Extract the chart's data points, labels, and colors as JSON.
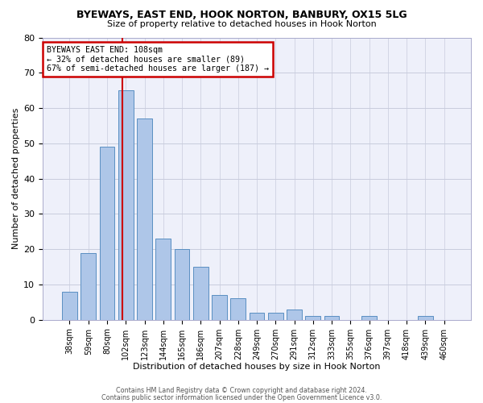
{
  "title1": "BYEWAYS, EAST END, HOOK NORTON, BANBURY, OX15 5LG",
  "title2": "Size of property relative to detached houses in Hook Norton",
  "xlabel": "Distribution of detached houses by size in Hook Norton",
  "ylabel": "Number of detached properties",
  "bar_labels": [
    "38sqm",
    "59sqm",
    "80sqm",
    "102sqm",
    "123sqm",
    "144sqm",
    "165sqm",
    "186sqm",
    "207sqm",
    "228sqm",
    "249sqm",
    "270sqm",
    "291sqm",
    "312sqm",
    "333sqm",
    "355sqm",
    "376sqm",
    "397sqm",
    "418sqm",
    "439sqm",
    "460sqm"
  ],
  "bar_values": [
    8,
    19,
    49,
    65,
    57,
    23,
    20,
    15,
    7,
    6,
    2,
    2,
    3,
    1,
    1,
    0,
    1,
    0,
    0,
    1,
    0
  ],
  "bar_color": "#aec6e8",
  "bar_edge_color": "#5a8fc2",
  "annotation_title": "BYEWAYS EAST END: 108sqm",
  "annotation_line1": "← 32% of detached houses are smaller (89)",
  "annotation_line2": "67% of semi-detached houses are larger (187) →",
  "annotation_box_color": "#ffffff",
  "annotation_box_edge": "#cc0000",
  "footnote1": "Contains HM Land Registry data © Crown copyright and database right 2024.",
  "footnote2": "Contains public sector information licensed under the Open Government Licence v3.0.",
  "background_color": "#eef0fa",
  "grid_color": "#c8ccdd",
  "ylim": [
    0,
    80
  ],
  "yticks": [
    0,
    10,
    20,
    30,
    40,
    50,
    60,
    70,
    80
  ]
}
